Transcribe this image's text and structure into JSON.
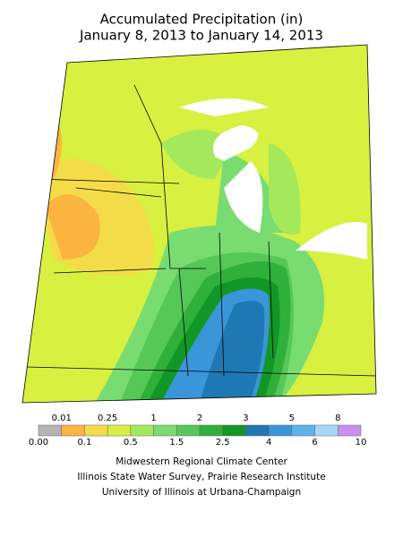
{
  "title": [
    "Accumulated Precipitation (in)",
    "January 8, 2013 to January 14, 2013"
  ],
  "legend": {
    "bounds": [
      "0.00",
      "0.01",
      "0.1",
      "0.25",
      "0.5",
      "1",
      "1.5",
      "2",
      "2.5",
      "3",
      "4",
      "5",
      "6",
      "8",
      "10"
    ],
    "colors": [
      "#b4b4b4",
      "#fbb43f",
      "#f4dc48",
      "#d8f040",
      "#a4e85c",
      "#78dc70",
      "#55c858",
      "#2fb03a",
      "#129626",
      "#1e78b4",
      "#3a96d8",
      "#5ab4ec",
      "#a6d8f6",
      "#c890ec"
    ]
  },
  "credits": [
    "Midwestern Regional Climate Center",
    "Illinois State Water Survey, Prairie Research Institute",
    "University of Illinois at Urbana-Champaign"
  ]
}
